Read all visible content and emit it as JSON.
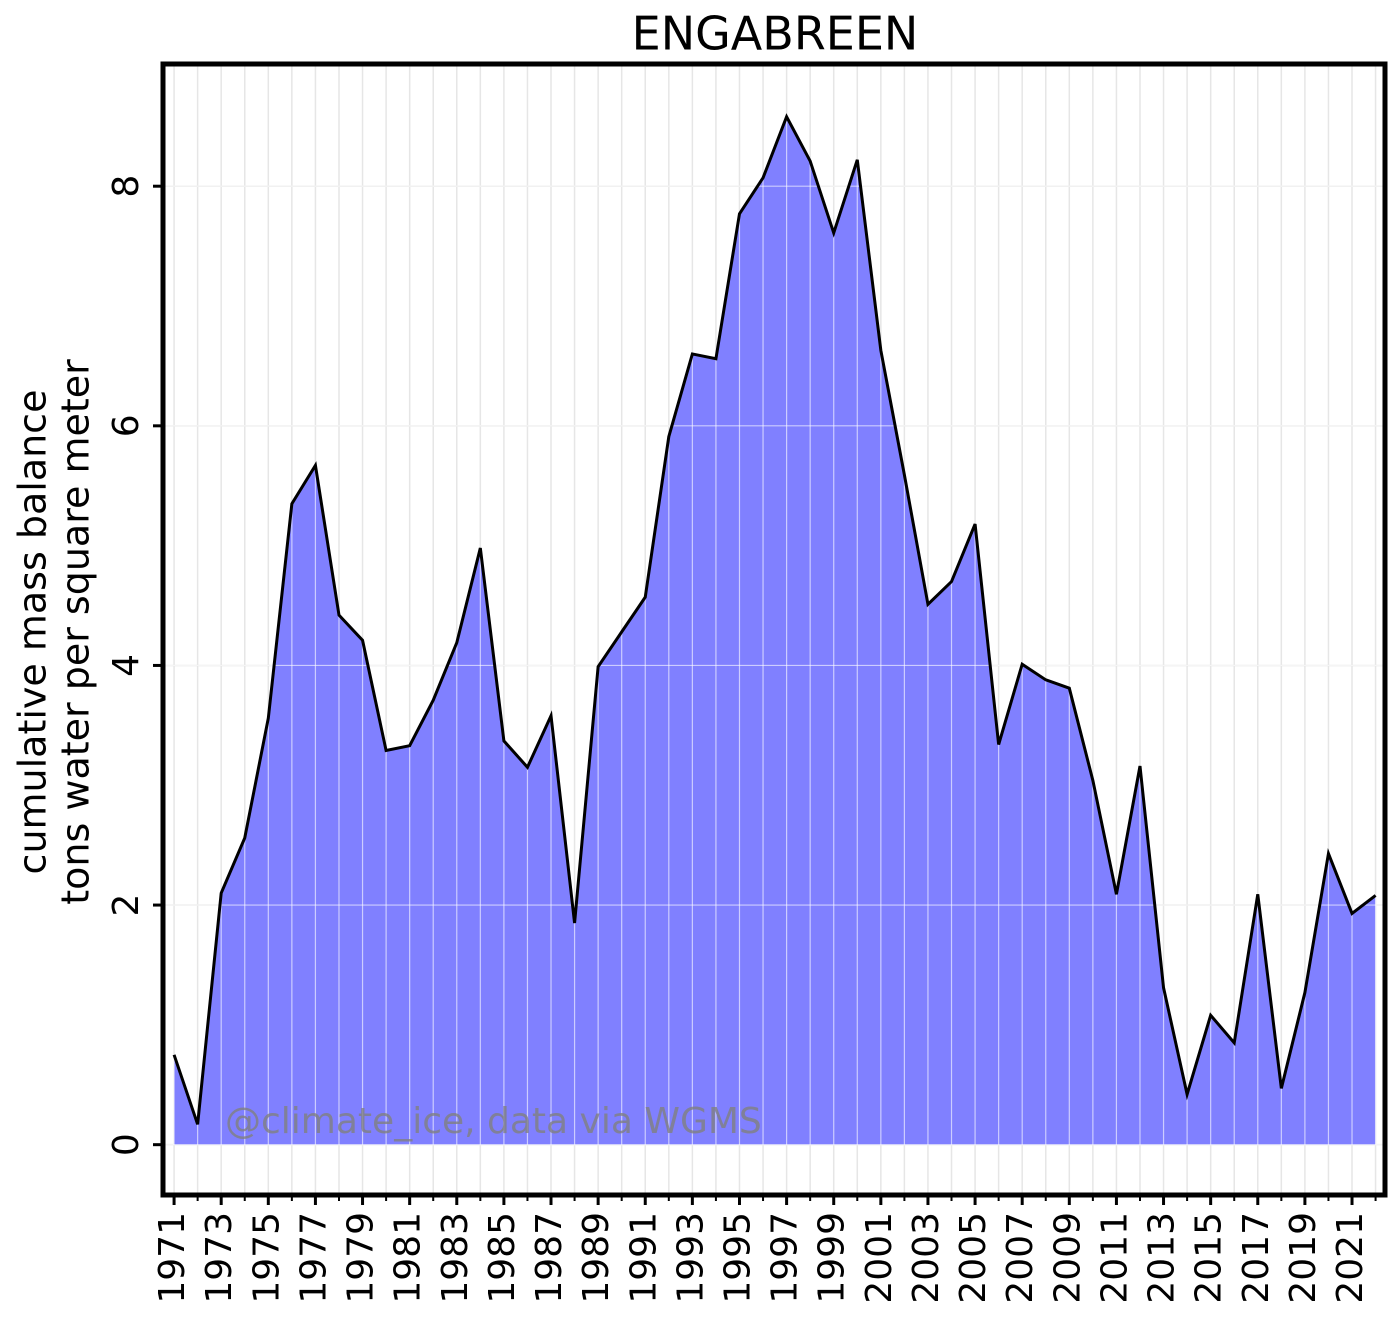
{
  "chart_data": {
    "type": "area",
    "title": "ENGABREEN",
    "y_label": [
      "cumulative mass balance",
      "tons water per square meter"
    ],
    "annotation": "@climate_ice, data via WGMS",
    "x": [
      1971,
      1972,
      1973,
      1974,
      1975,
      1976,
      1977,
      1978,
      1979,
      1980,
      1981,
      1982,
      1983,
      1984,
      1985,
      1986,
      1987,
      1988,
      1989,
      1990,
      1991,
      1992,
      1993,
      1994,
      1995,
      1996,
      1997,
      1998,
      1999,
      2000,
      2001,
      2002,
      2003,
      2004,
      2005,
      2006,
      2007,
      2008,
      2009,
      2010,
      2011,
      2012,
      2013,
      2014,
      2015,
      2016,
      2017,
      2018,
      2019,
      2020,
      2021,
      2022
    ],
    "values": [
      0.75,
      0.17,
      2.1,
      2.56,
      3.56,
      5.35,
      5.67,
      4.42,
      4.21,
      3.29,
      3.33,
      3.71,
      4.19,
      4.98,
      3.37,
      3.15,
      3.58,
      1.85,
      3.99,
      4.28,
      4.57,
      5.91,
      6.6,
      6.56,
      7.77,
      8.07,
      8.58,
      8.21,
      7.61,
      8.22,
      6.63,
      5.59,
      4.51,
      4.7,
      5.18,
      3.34,
      4.01,
      3.88,
      3.81,
      3.04,
      2.09,
      3.16,
      1.31,
      0.42,
      1.08,
      0.85,
      2.09,
      0.47,
      1.27,
      2.43,
      1.93,
      2.08
    ],
    "color": "#8080ff",
    "line_color": "#000000",
    "xlim": [
      1970.53,
      2022.4
    ],
    "ylim": [
      -0.42,
      9.02
    ],
    "xticks": [
      1971,
      1973,
      1975,
      1977,
      1979,
      1981,
      1983,
      1985,
      1987,
      1989,
      1991,
      1993,
      1995,
      1997,
      1999,
      2001,
      2003,
      2005,
      2007,
      2009,
      2011,
      2013,
      2015,
      2017,
      2019,
      2021
    ],
    "yticks": [
      0,
      2,
      4,
      6,
      8
    ],
    "grid": true
  }
}
